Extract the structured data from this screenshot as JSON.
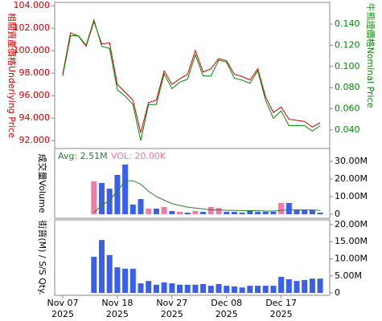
{
  "chart_data": [
    {
      "type": "line",
      "y_label": "相關資產價格Underlying Price",
      "y_label_color": "#cc0000",
      "y2_label": "牛熊證價格Nominal Price",
      "y2_label_color": "#008800",
      "ylim": [
        91.3,
        104.3
      ],
      "yticks": [
        {
          "value": 92,
          "label": "92.000"
        },
        {
          "value": 94,
          "label": "94.000"
        },
        {
          "value": 96,
          "label": "96.000"
        },
        {
          "value": 98,
          "label": "98.000"
        },
        {
          "value": 100,
          "label": "100.000"
        },
        {
          "value": 102,
          "label": "102.000"
        },
        {
          "value": 104,
          "label": "104.000"
        }
      ],
      "y2lim": [
        0.0225,
        0.1605
      ],
      "y2ticks": [
        {
          "value": 0.04,
          "label": "0.040"
        },
        {
          "value": 0.06,
          "label": "0.060"
        },
        {
          "value": 0.08,
          "label": "0.080"
        },
        {
          "value": 0.1,
          "label": "0.100"
        },
        {
          "value": 0.12,
          "label": "0.120"
        },
        {
          "value": 0.14,
          "label": "0.140"
        }
      ],
      "series": [
        {
          "color": "#cc0000",
          "axis": "y",
          "values": [
            97.9,
            101.6,
            101.3,
            100.4,
            102.6,
            100.6,
            100.7,
            97.0,
            96.3,
            95.6,
            92.7,
            95.4,
            95.6,
            98.2,
            97.0,
            97.5,
            97.9,
            100.0,
            98.1,
            98.4,
            99.3,
            99.1,
            97.9,
            97.7,
            97.4,
            98.4,
            95.9,
            94.5,
            95.0,
            93.9,
            93.8,
            93.7,
            93.2,
            93.6
          ]
        },
        {
          "color": "#008800",
          "axis": "y2",
          "values": [
            0.091,
            0.129,
            0.129,
            0.12,
            0.144,
            0.119,
            0.117,
            0.078,
            0.072,
            0.064,
            0.03,
            0.064,
            0.064,
            0.093,
            0.079,
            0.085,
            0.088,
            0.111,
            0.091,
            0.091,
            0.106,
            0.104,
            0.089,
            0.087,
            0.084,
            0.096,
            0.068,
            0.051,
            0.058,
            0.044,
            0.044,
            0.044,
            0.039,
            0.044
          ]
        }
      ]
    },
    {
      "type": "bar",
      "y_label": "成交量Volume",
      "annotations": [
        "Avg: 2.51M",
        "VOL: 20.00K"
      ],
      "annotation_colors": [
        "#2e7d32",
        "#f07aa8"
      ],
      "ylim": [
        -2300000,
        37300000
      ],
      "yticks": [
        0,
        {
          "value": 10000000,
          "label": "10.00M"
        },
        {
          "value": 20000000,
          "label": "20.00M"
        },
        {
          "value": 30000000,
          "label": "30.00M"
        }
      ],
      "values": [
        null,
        null,
        null,
        null,
        18600000,
        17700000,
        14500000,
        22300000,
        28200000,
        5500000,
        8600000,
        3200000,
        3200000,
        4100000,
        1800000,
        1400000,
        900000,
        1800000,
        1400000,
        4100000,
        3600000,
        1400000,
        1400000,
        900000,
        2300000,
        1400000,
        1400000,
        1400000,
        6400000,
        6400000,
        2300000,
        2300000,
        2300000,
        900000
      ],
      "bar_colors": [
        null,
        null,
        null,
        null,
        "#f07aa8",
        "#3a5fe8",
        "#3a5fe8",
        "#3a5fe8",
        "#3a5fe8",
        "#3a5fe8",
        "#3a5fe8",
        "#f07aa8",
        "#3a5fe8",
        "#f07aa8",
        "#3a5fe8",
        "#f07aa8",
        "#3a5fe8",
        "#f07aa8",
        "#3a5fe8",
        "#f07aa8",
        "#f07aa8",
        "#3a5fe8",
        "#3a5fe8",
        "#3a5fe8",
        "#3a5fe8",
        "#3a5fe8",
        "#3a5fe8",
        "#3a5fe8",
        "#f07aa8",
        "#3a5fe8",
        "#3a5fe8",
        "#3a5fe8",
        "#3a5fe8",
        "#3a5fe8"
      ],
      "average": {
        "color": "#2e7d32",
        "values": [
          null,
          null,
          null,
          null,
          1000000,
          5000000,
          8000000,
          13000000,
          19000000,
          19000000,
          17000000,
          13000000,
          10000000,
          8000000,
          6000000,
          5000000,
          4000000,
          3500000,
          3000000,
          2500000,
          2500000,
          2200000,
          2200000,
          2000000,
          2000000,
          2000000,
          1800000,
          1800000,
          2200000,
          2500000,
          2500000,
          2500000,
          2400000,
          2200000
        ]
      }
    },
    {
      "type": "bar",
      "y_label": "街貨(M) / S/S Qty.",
      "color": "#3a5fe8",
      "ylim": [
        -700000,
        21400000
      ],
      "yticks": [
        0,
        {
          "value": 5000000,
          "label": "5.00M"
        },
        {
          "value": 10000000,
          "label": "10.00M"
        },
        {
          "value": 15000000,
          "label": "15.00M"
        },
        {
          "value": 20000000,
          "label": "20.00M"
        }
      ],
      "values": [
        null,
        null,
        null,
        null,
        10600000,
        15500000,
        11100000,
        7500000,
        7100000,
        7100000,
        2800000,
        3500000,
        2400000,
        3100000,
        2800000,
        2400000,
        2400000,
        2400000,
        2600000,
        2100000,
        2600000,
        2100000,
        1900000,
        1600000,
        2100000,
        2100000,
        2100000,
        2100000,
        4700000,
        4000000,
        3500000,
        3800000,
        4200000,
        4200000
      ],
      "categories": [
        "Nov 07",
        null,
        null,
        null,
        null,
        null,
        null,
        "Nov 18",
        null,
        null,
        null,
        null,
        null,
        null,
        "Nov 27",
        null,
        null,
        null,
        null,
        null,
        null,
        "Dec 08",
        null,
        null,
        null,
        null,
        null,
        null,
        "Dec 17",
        null,
        null,
        null,
        null,
        null
      ],
      "category_years": [
        "2025",
        null,
        null,
        null,
        null,
        null,
        null,
        "2025",
        null,
        null,
        null,
        null,
        null,
        null,
        "2025",
        null,
        null,
        null,
        null,
        null,
        null,
        "2025",
        null,
        null,
        null,
        null,
        null,
        null,
        "2025",
        null,
        null,
        null,
        null,
        null
      ]
    }
  ]
}
